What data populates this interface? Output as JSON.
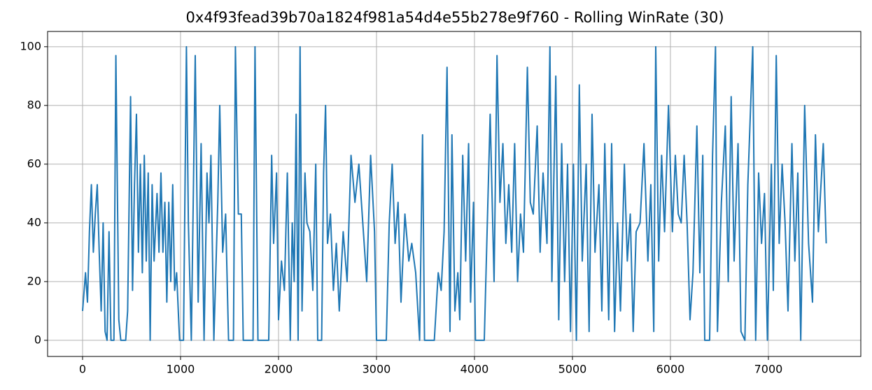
{
  "chart_data": {
    "type": "line",
    "title": "0x4f93fead39b70a1824f981a54d4e55b278e9f760 - Rolling WinRate (30)",
    "x": [
      0,
      30,
      50,
      70,
      90,
      110,
      130,
      150,
      170,
      190,
      210,
      230,
      250,
      270,
      290,
      320,
      340,
      370,
      390,
      440,
      460,
      490,
      510,
      530,
      550,
      570,
      590,
      610,
      630,
      650,
      670,
      690,
      710,
      730,
      760,
      780,
      800,
      820,
      840,
      860,
      880,
      900,
      920,
      940,
      960,
      990,
      1030,
      1060,
      1080,
      1110,
      1150,
      1180,
      1210,
      1240,
      1270,
      1290,
      1310,
      1340,
      1380,
      1400,
      1430,
      1460,
      1490,
      1540,
      1560,
      1590,
      1620,
      1640,
      1740,
      1760,
      1790,
      1900,
      1930,
      1950,
      1980,
      2000,
      2030,
      2060,
      2090,
      2120,
      2140,
      2160,
      2180,
      2200,
      2220,
      2240,
      2270,
      2290,
      2320,
      2350,
      2380,
      2400,
      2440,
      2460,
      2480,
      2500,
      2530,
      2560,
      2590,
      2620,
      2660,
      2700,
      2740,
      2780,
      2820,
      2860,
      2900,
      2940,
      2980,
      3000,
      3100,
      3130,
      3160,
      3190,
      3220,
      3250,
      3290,
      3330,
      3360,
      3400,
      3440,
      3470,
      3490,
      3590,
      3630,
      3660,
      3690,
      3720,
      3750,
      3770,
      3800,
      3830,
      3850,
      3880,
      3910,
      3940,
      3960,
      3990,
      4010,
      4100,
      4160,
      4200,
      4230,
      4260,
      4290,
      4320,
      4350,
      4380,
      4410,
      4440,
      4470,
      4500,
      4540,
      4570,
      4600,
      4640,
      4670,
      4700,
      4740,
      4770,
      4790,
      4830,
      4860,
      4890,
      4920,
      4950,
      4980,
      5010,
      5040,
      5070,
      5100,
      5140,
      5170,
      5200,
      5230,
      5270,
      5300,
      5330,
      5370,
      5400,
      5430,
      5460,
      5490,
      5530,
      5560,
      5590,
      5620,
      5650,
      5690,
      5730,
      5770,
      5800,
      5830,
      5850,
      5880,
      5910,
      5940,
      5980,
      6020,
      6050,
      6080,
      6110,
      6140,
      6170,
      6200,
      6230,
      6270,
      6300,
      6330,
      6350,
      6400,
      6430,
      6460,
      6480,
      6520,
      6560,
      6590,
      6620,
      6650,
      6690,
      6720,
      6760,
      6790,
      6840,
      6870,
      6900,
      6930,
      6960,
      6990,
      7030,
      7050,
      7080,
      7110,
      7140,
      7170,
      7200,
      7240,
      7270,
      7300,
      7330,
      7370,
      7410,
      7450,
      7480,
      7510,
      7560,
      7590
    ],
    "values": [
      10,
      23,
      13,
      37,
      53,
      30,
      43,
      53,
      30,
      10,
      40,
      3,
      0,
      37,
      0,
      0,
      97,
      7,
      0,
      0,
      10,
      83,
      17,
      53,
      77,
      30,
      60,
      23,
      63,
      27,
      57,
      0,
      53,
      27,
      50,
      30,
      57,
      30,
      47,
      13,
      47,
      20,
      53,
      17,
      23,
      0,
      0,
      100,
      40,
      0,
      97,
      13,
      67,
      0,
      57,
      40,
      63,
      0,
      47,
      80,
      30,
      43,
      0,
      0,
      100,
      43,
      43,
      0,
      0,
      100,
      0,
      0,
      63,
      33,
      57,
      7,
      27,
      17,
      57,
      0,
      40,
      20,
      77,
      0,
      100,
      10,
      57,
      40,
      37,
      17,
      60,
      0,
      0,
      57,
      80,
      33,
      43,
      17,
      33,
      10,
      37,
      20,
      63,
      47,
      60,
      40,
      20,
      63,
      37,
      0,
      0,
      40,
      60,
      33,
      47,
      13,
      43,
      27,
      33,
      23,
      0,
      70,
      0,
      0,
      23,
      17,
      37,
      93,
      3,
      70,
      10,
      23,
      7,
      63,
      27,
      67,
      13,
      47,
      0,
      0,
      77,
      20,
      97,
      47,
      67,
      33,
      53,
      30,
      67,
      20,
      43,
      30,
      93,
      47,
      43,
      73,
      30,
      57,
      33,
      100,
      20,
      90,
      7,
      67,
      20,
      60,
      3,
      60,
      0,
      87,
      27,
      60,
      3,
      77,
      30,
      53,
      10,
      67,
      7,
      67,
      3,
      40,
      10,
      60,
      27,
      43,
      3,
      37,
      40,
      67,
      27,
      53,
      3,
      100,
      27,
      63,
      37,
      80,
      37,
      63,
      43,
      40,
      63,
      40,
      7,
      23,
      73,
      23,
      63,
      0,
      0,
      63,
      100,
      3,
      47,
      73,
      20,
      83,
      27,
      67,
      3,
      0,
      53,
      100,
      0,
      57,
      33,
      50,
      0,
      60,
      17,
      97,
      33,
      60,
      40,
      10,
      67,
      27,
      57,
      0,
      80,
      33,
      13,
      70,
      37,
      67,
      33
    ],
    "color": "#1f77b4",
    "xlim": [
      -357,
      7943
    ],
    "xticks": [
      0,
      1000,
      2000,
      3000,
      4000,
      5000,
      6000,
      7000
    ],
    "ylim": [
      -5.5,
      105.2
    ],
    "yticks": [
      0,
      20,
      40,
      60,
      80,
      100
    ],
    "grid": true
  }
}
